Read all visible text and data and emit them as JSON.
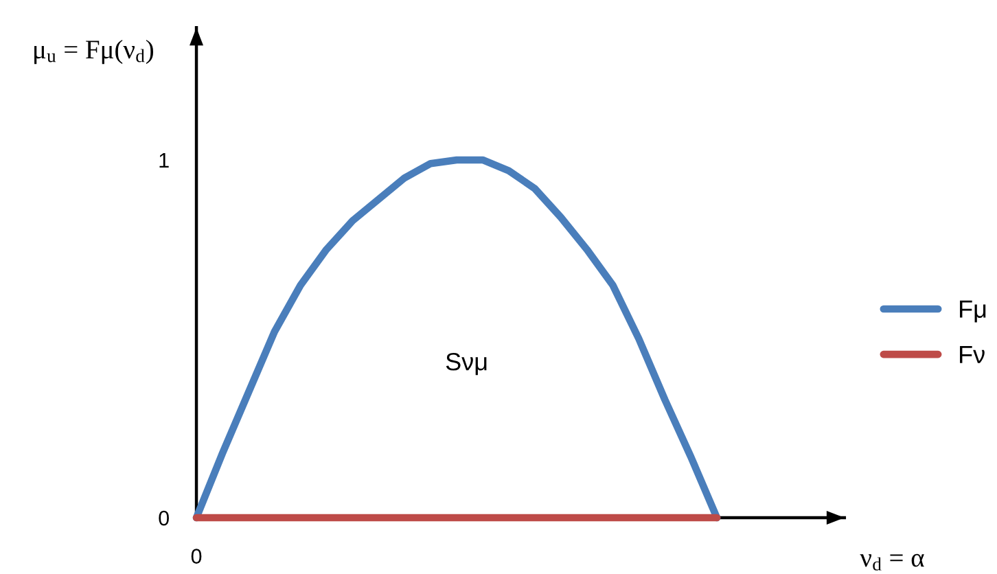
{
  "chart_data": {
    "type": "line",
    "ylabel": "μ$_{u}$ = Fμ(ν$_{d}$)",
    "xlabel": "ν$_{d}$ = α",
    "categories": [
      "0",
      null,
      null,
      null,
      null,
      null,
      null,
      null,
      null,
      null,
      null,
      null,
      null,
      null,
      null,
      null,
      null,
      null,
      null,
      null,
      null
    ],
    "series": [
      {
        "name": "Fμ",
        "color": "#4a7ebb",
        "values": [
          0,
          0.18,
          0.35,
          0.52,
          0.65,
          0.75,
          0.83,
          0.89,
          0.95,
          0.99,
          1.0,
          1.0,
          0.97,
          0.92,
          0.84,
          0.75,
          0.65,
          0.5,
          0.33,
          0.17,
          0
        ]
      },
      {
        "name": "Fν",
        "color": "#be4b48",
        "values": [
          0,
          0,
          0,
          0,
          0,
          0,
          0,
          0,
          0,
          0,
          0,
          0,
          0,
          0,
          0,
          0,
          0,
          0,
          0,
          0,
          0
        ]
      }
    ],
    "ylim": [
      0,
      1.37
    ],
    "yticks": [
      0,
      1
    ],
    "annotations": [
      "Sνμ"
    ],
    "legend": "right"
  }
}
